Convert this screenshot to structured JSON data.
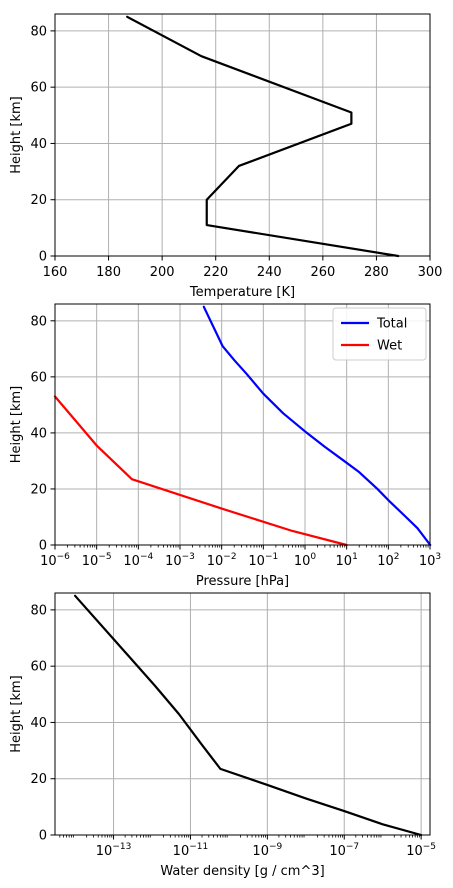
{
  "chart_data": [
    {
      "type": "line",
      "xlabel": "Temperature [K]",
      "ylabel": "Height [km]",
      "xscale": "linear",
      "xlim": [
        160,
        300
      ],
      "ylim": [
        0,
        86
      ],
      "xticks": [
        160,
        180,
        200,
        220,
        240,
        260,
        280,
        300
      ],
      "yticks": [
        0,
        20,
        40,
        60,
        80
      ],
      "grid": true,
      "series": [
        {
          "color": "#000000",
          "x": [
            288.15,
            216.65,
            216.65,
            228.65,
            270.65,
            270.65,
            214.65,
            186.95
          ],
          "y": [
            0,
            11,
            20,
            32,
            47,
            51,
            71,
            85
          ]
        }
      ]
    },
    {
      "type": "line",
      "xlabel": "Pressure [hPa]",
      "ylabel": "Height [km]",
      "xscale": "log",
      "xlim": [
        1e-06,
        1000
      ],
      "ylim": [
        0,
        86
      ],
      "xticks": [
        {
          "base": "10",
          "exp": "−6"
        },
        {
          "base": "10",
          "exp": "−5"
        },
        {
          "base": "10",
          "exp": "−4"
        },
        {
          "base": "10",
          "exp": "−3"
        },
        {
          "base": "10",
          "exp": "−2"
        },
        {
          "base": "10",
          "exp": "−1"
        },
        {
          "base": "10",
          "exp": "0"
        },
        {
          "base": "10",
          "exp": "1"
        },
        {
          "base": "10",
          "exp": "2"
        },
        {
          "base": "10",
          "exp": "3"
        }
      ],
      "yticks": [
        0,
        20,
        40,
        60,
        80
      ],
      "grid": true,
      "legend": "top-right",
      "series": [
        {
          "name": "Total",
          "color": "#0000ff",
          "x": [
            1013.25,
            500,
            264.4,
            100,
            54.7,
            20,
            8.68,
            3,
            1.11,
            0.3,
            0.1,
            0.04,
            0.02,
            0.0105,
            0.00373
          ],
          "y": [
            0,
            6,
            10,
            16,
            20,
            26,
            30,
            35,
            40,
            47,
            54,
            61,
            66,
            71,
            85
          ]
        },
        {
          "name": "Wet",
          "color": "#ff0000",
          "x": [
            10,
            0.5,
            0.01,
            7e-05,
            1e-05,
            1e-06
          ],
          "y": [
            0,
            5,
            13,
            23.5,
            35.5,
            53
          ]
        }
      ]
    },
    {
      "type": "line",
      "xlabel": "Water density [g / cm^3]",
      "ylabel": "Height [km]",
      "xscale": "log",
      "xlim": [
        3e-15,
        1.7e-05
      ],
      "ylim": [
        0,
        86
      ],
      "xticks": [
        {
          "base": "10",
          "exp": "−13"
        },
        {
          "base": "10",
          "exp": "−11"
        },
        {
          "base": "10",
          "exp": "−9"
        },
        {
          "base": "10",
          "exp": "−7"
        },
        {
          "base": "10",
          "exp": "−5"
        }
      ],
      "yticks": [
        0,
        20,
        40,
        60,
        80
      ],
      "grid": true,
      "series": [
        {
          "color": "#000000",
          "x": [
            1e-05,
            1e-06,
            1e-07,
            1e-08,
            1e-09,
            6e-11,
            2e-11,
            5e-12,
            1.2e-12,
            2e-13,
            1e-14
          ],
          "y": [
            0,
            3.8,
            8.5,
            13,
            17.8,
            23.5,
            32,
            43,
            53,
            65,
            85
          ]
        }
      ]
    }
  ]
}
